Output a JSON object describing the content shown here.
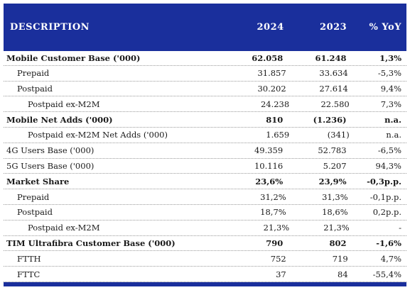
{
  "header": {
    "description": "DESCRIPTION",
    "col_2024": "2024",
    "col_2023": "2023",
    "col_yoy": "% YoY"
  },
  "rows": [
    {
      "label": "Mobile Customer Base ('000)",
      "v2024": "62.058",
      "v2023": "61.248",
      "yoy": "1,3%",
      "level": 0,
      "bold": true
    },
    {
      "label": "Prepaid",
      "v2024": "31.857",
      "v2023": "33.634",
      "yoy": "-5,3%",
      "level": 1,
      "bold": false
    },
    {
      "label": "Postpaid",
      "v2024": "30.202",
      "v2023": "27.614",
      "yoy": "9,4%",
      "level": 1,
      "bold": false
    },
    {
      "label": "Postpaid ex-M2M",
      "v2024": "24.238",
      "v2023": "22.580",
      "yoy": "7,3%",
      "level": 2,
      "bold": false
    },
    {
      "label": "Mobile Net Adds ('000)",
      "v2024": "810",
      "v2023": "(1.236)",
      "yoy": "n.a.",
      "level": 0,
      "bold": true
    },
    {
      "label": "Postpaid ex-M2M Net Adds ('000)",
      "v2024": "1.659",
      "v2023": "(341)",
      "yoy": "n.a.",
      "level": 2,
      "bold": false
    },
    {
      "label": "4G Users Base ('000)",
      "v2024": "49.359",
      "v2023": "52.783",
      "yoy": "-6,5%",
      "level": 0,
      "bold": false
    },
    {
      "label": "5G Users Base ('000)",
      "v2024": "10.116",
      "v2023": "5.207",
      "yoy": "94,3%",
      "level": 0,
      "bold": false
    },
    {
      "label": "Market Share",
      "v2024": "23,6%",
      "v2023": "23,9%",
      "yoy": "-0,3p.p.",
      "level": 0,
      "bold": true
    },
    {
      "label": "Prepaid",
      "v2024": "31,2%",
      "v2023": "31,3%",
      "yoy": "-0,1p.p.",
      "level": 1,
      "bold": false
    },
    {
      "label": "Postpaid",
      "v2024": "18,7%",
      "v2023": "18,6%",
      "yoy": "0,2p.p.",
      "level": 1,
      "bold": false
    },
    {
      "label": "Postpaid ex-M2M",
      "v2024": "21,3%",
      "v2023": "21,3%",
      "yoy": "-",
      "level": 2,
      "bold": false
    },
    {
      "label": "TIM Ultrafibra Customer Base ('000)",
      "v2024": "790",
      "v2023": "802",
      "yoy": "-1,6%",
      "level": 0,
      "bold": true
    },
    {
      "label": "FTTH",
      "v2024": "752",
      "v2023": "719",
      "yoy": "4,7%",
      "level": 1,
      "bold": false
    },
    {
      "label": "FTTC",
      "v2024": "37",
      "v2023": "84",
      "yoy": "-55,4%",
      "level": 1,
      "bold": false
    }
  ]
}
